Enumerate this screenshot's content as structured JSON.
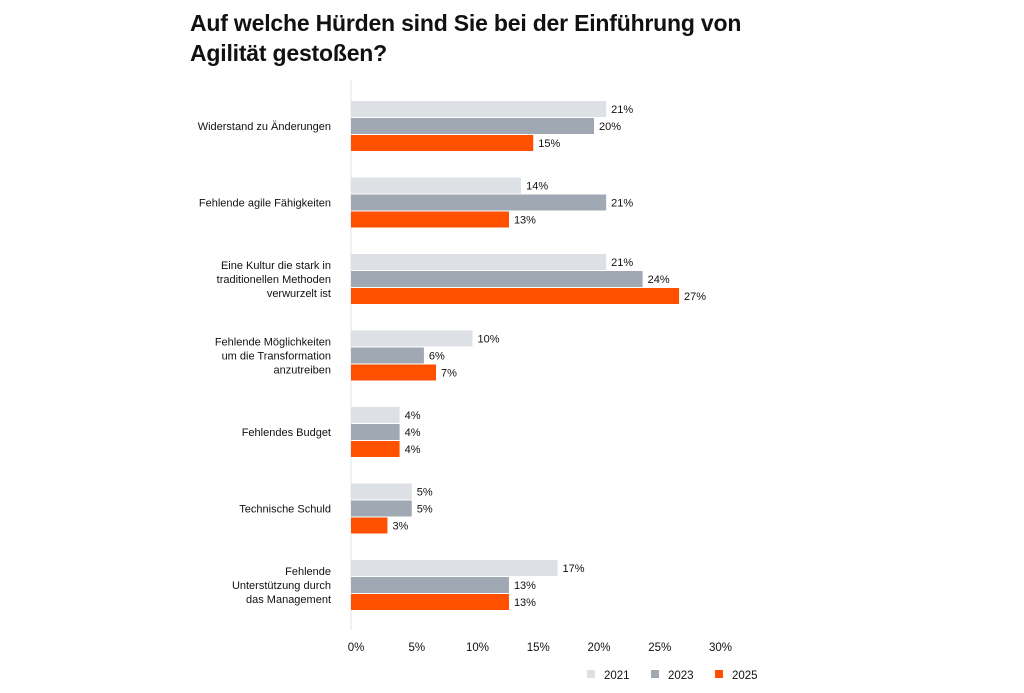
{
  "chart_data": {
    "type": "bar",
    "orientation": "horizontal",
    "title": "Auf welche Hürden sind Sie bei der Einführung von Agilität gestoßen?",
    "categories": [
      [
        "Widerstand zu Änderungen"
      ],
      [
        "Fehlende agile Fähigkeiten"
      ],
      [
        "Eine Kultur die stark in",
        "traditionellen Methoden",
        "verwurzelt ist"
      ],
      [
        "Fehlende Möglichkeiten",
        "um die Transformation",
        "anzutreiben"
      ],
      [
        "Fehlendes Budget"
      ],
      [
        "Technische Schuld"
      ],
      [
        "Fehlende",
        "Unterstützung durch",
        "das Management"
      ]
    ],
    "series": [
      {
        "name": "2021",
        "color": "#dde1e5",
        "values": [
          21,
          14,
          21,
          10,
          4,
          5,
          17
        ]
      },
      {
        "name": "2023",
        "color": "#a0a8b3",
        "values": [
          20,
          21,
          24,
          6,
          4,
          5,
          13
        ]
      },
      {
        "name": "2025",
        "color": "#ff5000",
        "values": [
          15,
          13,
          27,
          7,
          4,
          3,
          13
        ]
      }
    ],
    "value_suffix": "%",
    "xlim": [
      0,
      30
    ],
    "xticks": [
      "0%",
      "5%",
      "10%",
      "15%",
      "20%",
      "25%",
      "30%"
    ],
    "grid": false,
    "legend_position": "bottom-right"
  }
}
